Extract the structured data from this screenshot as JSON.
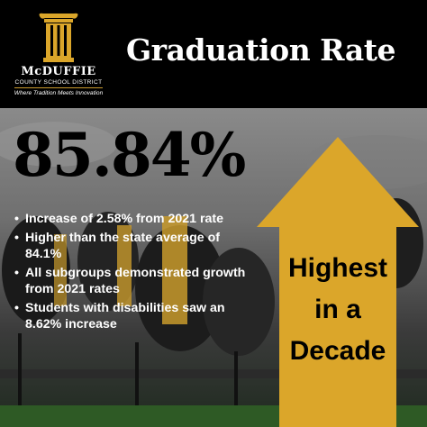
{
  "header": {
    "logo": {
      "name": "McDUFFIE",
      "subtitle": "COUNTY SCHOOL DISTRICT",
      "tagline": "Where Tradition Meets Innovation"
    },
    "title": "Graduation Rate"
  },
  "main": {
    "big_stat": "85.84%",
    "bullets": [
      "Increase of 2.58% from 2021 rate",
      "Higher than the state average of 84.1%",
      "All subgroups demonstrated growth from 2021 rates",
      "Students with disabilities saw an 8.62% increase"
    ],
    "arrow": {
      "lines": [
        "Highest",
        "in a",
        "Decade"
      ]
    }
  },
  "colors": {
    "gold": "#dba62a",
    "header_bg": "#000000"
  },
  "icons": {
    "logo": "pillar-logo-icon",
    "arrow": "up-arrow-icon"
  }
}
